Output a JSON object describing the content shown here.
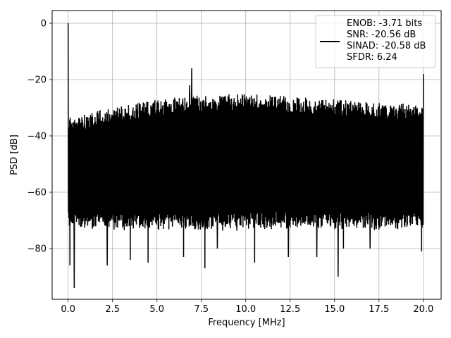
{
  "chart_data": {
    "type": "line",
    "xlabel": "Frequency [MHz]",
    "ylabel": "PSD [dB]",
    "xlim": [
      -0.9,
      21.0
    ],
    "ylim": [
      -98,
      4.5
    ],
    "xticks": [
      0.0,
      2.5,
      5.0,
      7.5,
      10.0,
      12.5,
      15.0,
      17.5,
      20.0
    ],
    "xtick_labels": [
      "0.0",
      "2.5",
      "5.0",
      "7.5",
      "10.0",
      "12.5",
      "15.0",
      "17.5",
      "20.0"
    ],
    "yticks": [
      0,
      -20,
      -40,
      -60,
      -80
    ],
    "ytick_labels": [
      "0",
      "−20",
      "−40",
      "−60",
      "−80"
    ],
    "grid": true,
    "legend_position": "top-right",
    "series": [
      {
        "name": "ENOB: -3.71 bits\nSNR: -20.56 dB\nSINAD: -20.58 dB\nSFDR: 6.24",
        "color": "#000000",
        "x_range": [
          0.0,
          20.0
        ],
        "noise_floor_upper": [
          [
            0.0,
            -33
          ],
          [
            2.5,
            -30
          ],
          [
            5.0,
            -27
          ],
          [
            7.5,
            -25.5
          ],
          [
            10.0,
            -25
          ],
          [
            12.5,
            -26
          ],
          [
            15.0,
            -27
          ],
          [
            17.5,
            -28
          ],
          [
            20.0,
            -29
          ]
        ],
        "noise_floor_lower": -70,
        "minima": [
          [
            0.1,
            -86
          ],
          [
            0.35,
            -94
          ],
          [
            2.2,
            -86
          ],
          [
            3.5,
            -84
          ],
          [
            4.5,
            -85
          ],
          [
            6.5,
            -83
          ],
          [
            7.7,
            -87
          ],
          [
            8.4,
            -80
          ],
          [
            10.5,
            -85
          ],
          [
            12.4,
            -83
          ],
          [
            14.0,
            -83
          ],
          [
            15.2,
            -90
          ],
          [
            15.5,
            -80
          ],
          [
            17.0,
            -80
          ],
          [
            19.9,
            -81
          ]
        ],
        "peaks": [
          [
            0.0,
            0.0
          ],
          [
            6.95,
            -16.0
          ],
          [
            20.0,
            -18.0
          ],
          [
            6.85,
            -22.0
          ]
        ]
      }
    ],
    "legend_lines": [
      "ENOB: -3.71 bits",
      "SNR: -20.56 dB",
      "SINAD: -20.58 dB",
      "SFDR: 6.24"
    ]
  }
}
